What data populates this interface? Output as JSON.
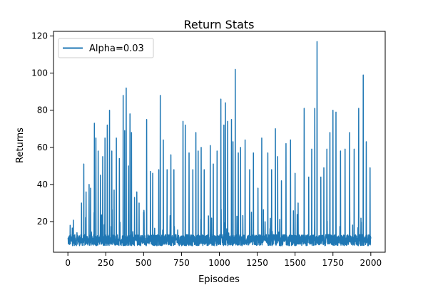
{
  "chart_data": {
    "type": "line",
    "title": "Return Stats",
    "xlabel": "Episodes",
    "ylabel": "Returns",
    "xlim": [
      -95,
      2095
    ],
    "ylim": [
      3.5,
      122.5
    ],
    "xticks": [
      0,
      250,
      500,
      750,
      1000,
      1250,
      1500,
      1750,
      2000
    ],
    "yticks": [
      20,
      40,
      60,
      80,
      100,
      120
    ],
    "legend": "top-left",
    "grid": false,
    "series": [
      {
        "name": "Alpha=0.03",
        "color": "#1f77b4",
        "baseline_min": 7,
        "baseline_max": 13,
        "peaks": [
          [
            15,
            18
          ],
          [
            60,
            14
          ],
          [
            90,
            30
          ],
          [
            105,
            51
          ],
          [
            120,
            36
          ],
          [
            140,
            40
          ],
          [
            150,
            38
          ],
          [
            175,
            73
          ],
          [
            185,
            65
          ],
          [
            200,
            58
          ],
          [
            215,
            45
          ],
          [
            230,
            55
          ],
          [
            245,
            65
          ],
          [
            260,
            72
          ],
          [
            275,
            80
          ],
          [
            290,
            58
          ],
          [
            305,
            37
          ],
          [
            320,
            65
          ],
          [
            340,
            54
          ],
          [
            365,
            88
          ],
          [
            375,
            69
          ],
          [
            385,
            92
          ],
          [
            400,
            50
          ],
          [
            410,
            78
          ],
          [
            420,
            68
          ],
          [
            440,
            33
          ],
          [
            455,
            36
          ],
          [
            470,
            30
          ],
          [
            500,
            25
          ],
          [
            520,
            75
          ],
          [
            545,
            47
          ],
          [
            560,
            46
          ],
          [
            600,
            48
          ],
          [
            610,
            88
          ],
          [
            630,
            64
          ],
          [
            655,
            48
          ],
          [
            680,
            56
          ],
          [
            700,
            48
          ],
          [
            760,
            74
          ],
          [
            775,
            72
          ],
          [
            800,
            57
          ],
          [
            825,
            48
          ],
          [
            845,
            68
          ],
          [
            860,
            58
          ],
          [
            880,
            60
          ],
          [
            900,
            48
          ],
          [
            940,
            61
          ],
          [
            960,
            51
          ],
          [
            985,
            58
          ],
          [
            1010,
            86
          ],
          [
            1030,
            72
          ],
          [
            1040,
            84
          ],
          [
            1055,
            74
          ],
          [
            1080,
            75
          ],
          [
            1090,
            63
          ],
          [
            1105,
            102
          ],
          [
            1125,
            57
          ],
          [
            1140,
            60
          ],
          [
            1170,
            64
          ],
          [
            1200,
            48
          ],
          [
            1225,
            57
          ],
          [
            1255,
            38
          ],
          [
            1280,
            65
          ],
          [
            1320,
            57
          ],
          [
            1345,
            48
          ],
          [
            1370,
            70
          ],
          [
            1385,
            55
          ],
          [
            1410,
            42
          ],
          [
            1440,
            62
          ],
          [
            1470,
            64
          ],
          [
            1500,
            46
          ],
          [
            1520,
            30
          ],
          [
            1560,
            81
          ],
          [
            1590,
            44
          ],
          [
            1610,
            59
          ],
          [
            1630,
            81
          ],
          [
            1645,
            117
          ],
          [
            1670,
            44
          ],
          [
            1690,
            49
          ],
          [
            1710,
            59
          ],
          [
            1730,
            68
          ],
          [
            1750,
            80
          ],
          [
            1770,
            79
          ],
          [
            1800,
            58
          ],
          [
            1830,
            59
          ],
          [
            1860,
            68
          ],
          [
            1890,
            59
          ],
          [
            1920,
            81
          ],
          [
            1950,
            99
          ],
          [
            1970,
            63
          ],
          [
            1995,
            49
          ]
        ]
      }
    ]
  }
}
